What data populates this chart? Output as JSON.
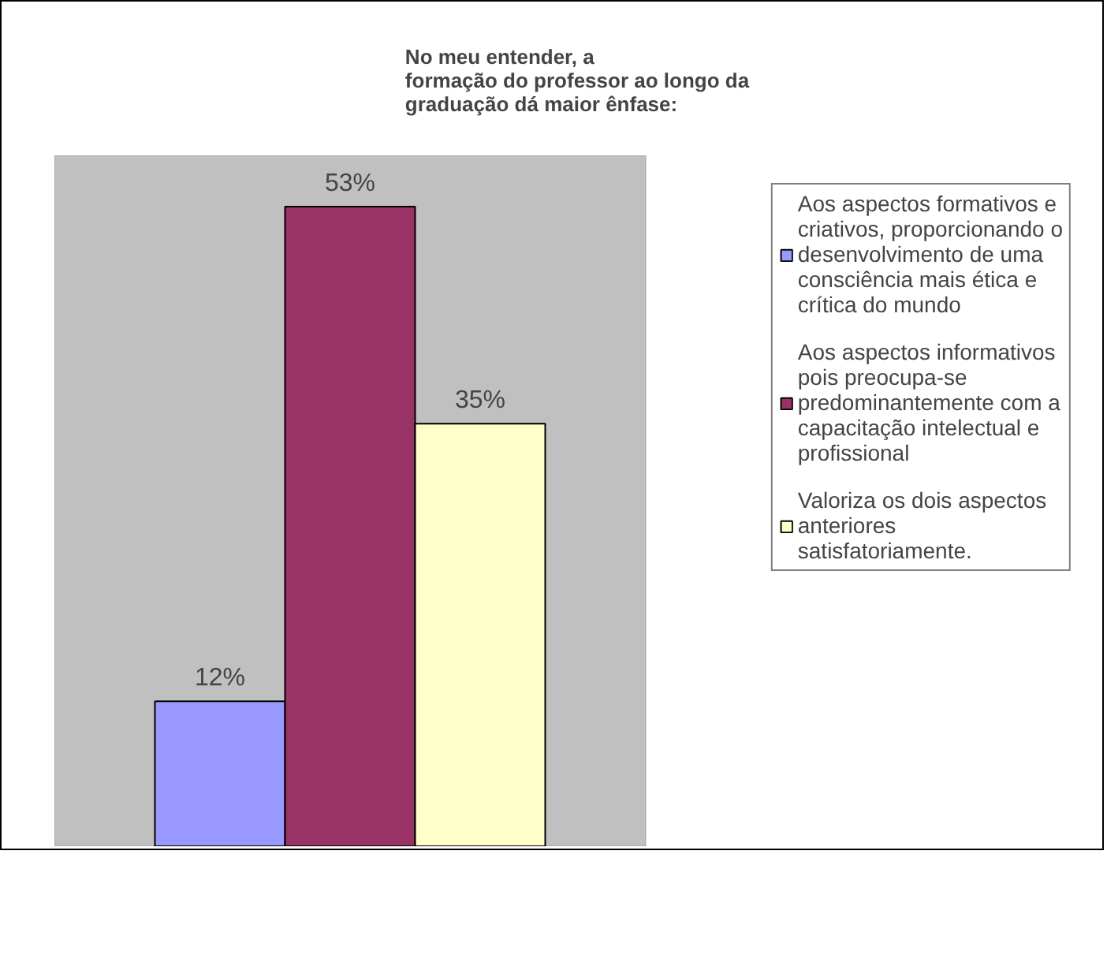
{
  "chart_data": {
    "type": "bar",
    "title": "No meu entender, a\nformação do professor ao longo da\ngraduação dá maior ênfase:",
    "categories": [
      null
    ],
    "series": [
      {
        "name": "Aos aspectos formativos e criativos, proporcionando o desenvolvimento de uma consciência mais ética e crítica do mundo",
        "color": "#9999ff",
        "values": [
          12
        ],
        "value_labels": [
          "12%"
        ]
      },
      {
        "name": "Aos aspectos informativos pois preocupa-se predominantemente com a capacitação intelectual e profissional",
        "color": "#993366",
        "values": [
          53
        ],
        "value_labels": [
          "53%"
        ]
      },
      {
        "name": "Valoriza os dois aspectos anteriores satisfatoriamente.",
        "color": "#ffffcc",
        "values": [
          35
        ],
        "value_labels": [
          "35%"
        ]
      }
    ],
    "data_labels": true,
    "legend": "right",
    "grid": false,
    "tick_labels": false
  }
}
